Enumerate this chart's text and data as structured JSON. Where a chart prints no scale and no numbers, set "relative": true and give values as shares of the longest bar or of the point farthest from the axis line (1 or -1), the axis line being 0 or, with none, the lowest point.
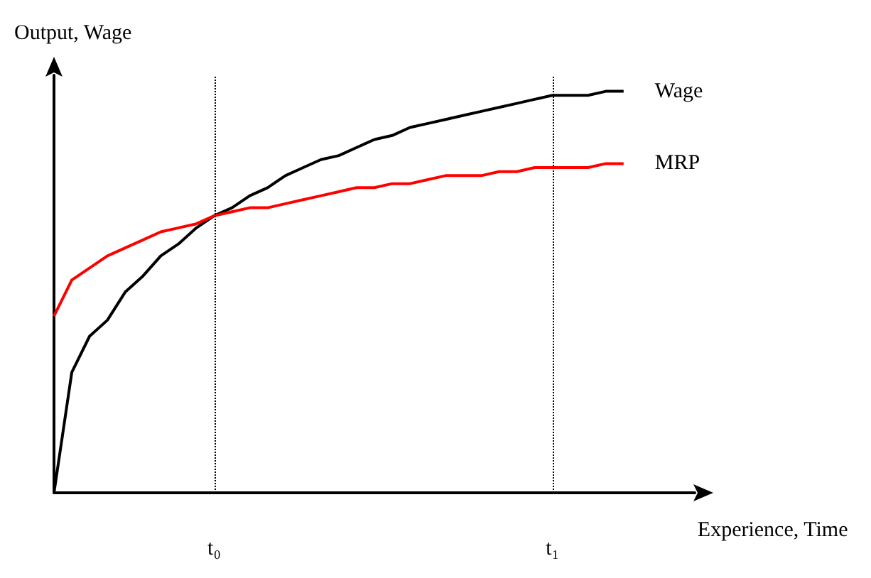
{
  "chart_data": {
    "type": "line",
    "xlabel": "Experience, Time",
    "ylabel": "Output, Wage",
    "relative": true,
    "categories": [
      null,
      null,
      null,
      null,
      null,
      null,
      null,
      null,
      null,
      "t₀",
      null,
      null,
      null,
      null,
      null,
      null,
      null,
      null,
      null,
      null,
      null,
      null,
      null,
      null,
      null,
      null,
      null,
      null,
      "t₁",
      null,
      null,
      null,
      null,
      null,
      null,
      null,
      null
    ],
    "series": [
      {
        "name": "Wage",
        "color": "#000000",
        "values": [
          0,
          0.3,
          0.39,
          0.43,
          0.5,
          0.54,
          0.59,
          0.62,
          0.66,
          0.69,
          0.71,
          0.74,
          0.76,
          0.79,
          0.81,
          0.83,
          0.84,
          0.86,
          0.88,
          0.89,
          0.91,
          0.92,
          0.93,
          0.94,
          0.95,
          0.96,
          0.97,
          0.98,
          0.99,
          0.99,
          0.99,
          1.0,
          1.0,
          null,
          null,
          null,
          null
        ]
      },
      {
        "name": "MRP",
        "color": "#ff0000",
        "values": [
          0.44,
          0.53,
          0.56,
          0.59,
          0.61,
          0.63,
          0.65,
          0.66,
          0.67,
          0.69,
          0.7,
          0.71,
          0.71,
          0.72,
          0.73,
          0.74,
          0.75,
          0.76,
          0.76,
          0.77,
          0.77,
          0.78,
          0.79,
          0.79,
          0.79,
          0.8,
          0.8,
          0.81,
          0.81,
          0.81,
          0.81,
          0.82,
          0.82,
          null,
          null,
          null,
          null
        ]
      }
    ],
    "grid": false,
    "legend": false,
    "marker": "none",
    "line_style": "solid",
    "ref_lines": [
      {
        "axis": "x",
        "value": "t₀",
        "label": null,
        "line_style": "dotted",
        "color": "#000000"
      },
      {
        "axis": "x",
        "value": "t₁",
        "label": null,
        "line_style": "dotted",
        "color": "#000000"
      }
    ]
  }
}
